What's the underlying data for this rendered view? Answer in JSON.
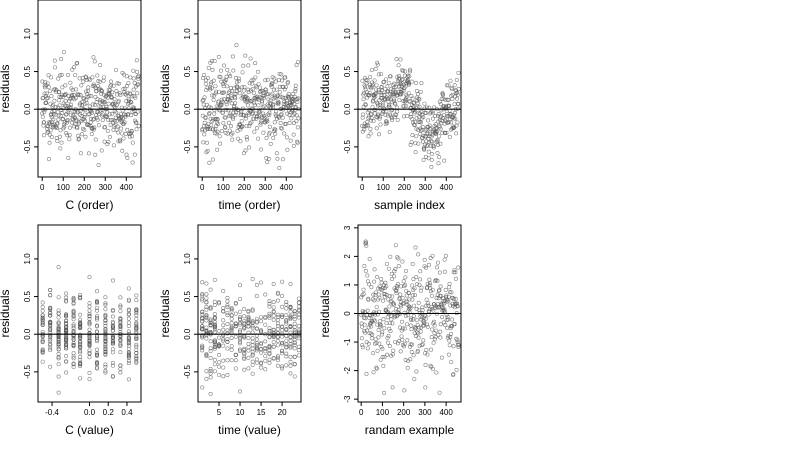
{
  "chart_data": [
    {
      "type": "scatter",
      "xlabel": "C (order)",
      "ylabel": "residuals",
      "xlim": [
        -20,
        470
      ],
      "ylim": [
        -0.9,
        1.45
      ],
      "xticks": [
        0,
        100,
        200,
        300,
        400
      ],
      "xtick_labels": [
        "0",
        "100",
        "200",
        "300",
        "400"
      ],
      "yticks": [
        -0.5,
        0.0,
        0.5,
        1.0
      ],
      "ytick_labels": [
        "-0.5",
        "0.0",
        "0.5",
        "1.0"
      ],
      "hline": 0,
      "n_points": 460,
      "style": "random",
      "seed": 11
    },
    {
      "type": "scatter",
      "xlabel": "time (order)",
      "ylabel": "residuals",
      "xlim": [
        -20,
        470
      ],
      "ylim": [
        -0.9,
        1.45
      ],
      "xticks": [
        0,
        100,
        200,
        300,
        400
      ],
      "xtick_labels": [
        "0",
        "100",
        "200",
        "300",
        "400"
      ],
      "yticks": [
        -0.5,
        0.0,
        0.5,
        1.0
      ],
      "ytick_labels": [
        "-0.5",
        "0.0",
        "0.5",
        "1.0"
      ],
      "hline": 0,
      "n_points": 460,
      "style": "random",
      "seed": 23
    },
    {
      "type": "scatter",
      "xlabel": "sample index",
      "ylabel": "residuals",
      "xlim": [
        -20,
        470
      ],
      "ylim": [
        -0.9,
        1.45
      ],
      "xticks": [
        0,
        100,
        200,
        300,
        400
      ],
      "xtick_labels": [
        "0",
        "100",
        "200",
        "300",
        "400"
      ],
      "yticks": [
        -0.5,
        0.0,
        0.5,
        1.0
      ],
      "ytick_labels": [
        "-0.5",
        "0.0",
        "0.5",
        "1.0"
      ],
      "hline": 0,
      "n_points": 460,
      "style": "trend",
      "seed": 37
    },
    {
      "type": "scatter",
      "xlabel": "C (value)",
      "ylabel": "residuals",
      "xlim": [
        -0.55,
        0.55
      ],
      "ylim": [
        -0.9,
        1.45
      ],
      "xticks": [
        -0.4,
        0.0,
        0.2,
        0.4
      ],
      "xtick_labels": [
        "-0.4",
        "0.0",
        "0.2",
        "0.4"
      ],
      "yticks": [
        -0.5,
        0.0,
        0.5,
        1.0
      ],
      "ytick_labels": [
        "-0.5",
        "0.0",
        "0.5",
        "1.0"
      ],
      "hline": 0,
      "n_points": 460,
      "style": "columns",
      "columns": [
        -0.5,
        -0.42,
        -0.33,
        -0.25,
        -0.17,
        -0.1,
        0.0,
        0.08,
        0.17,
        0.25,
        0.33,
        0.42,
        0.5
      ],
      "seed": 51
    },
    {
      "type": "scatter",
      "xlabel": "time (value)",
      "ylabel": "residuals",
      "xlim": [
        0,
        24.5
      ],
      "ylim": [
        -0.9,
        1.45
      ],
      "xticks": [
        5,
        10,
        15,
        20
      ],
      "xtick_labels": [
        "5",
        "10",
        "15",
        "20"
      ],
      "yticks": [
        -0.5,
        0.0,
        0.5,
        1.0
      ],
      "ytick_labels": [
        "-0.5",
        "0.0",
        "0.5",
        "1.0"
      ],
      "hline": 0,
      "n_points": 460,
      "style": "columns",
      "columns": [
        1,
        2,
        3,
        4,
        5,
        6,
        7,
        8,
        9,
        10,
        11,
        12,
        13,
        14,
        15,
        16,
        17,
        18,
        19,
        20,
        21,
        22,
        23,
        24
      ],
      "seed": 67
    },
    {
      "type": "scatter",
      "xlabel": "randam example",
      "ylabel": "residuals",
      "xlim": [
        -15,
        470
      ],
      "ylim": [
        -3.1,
        3.1
      ],
      "xticks": [
        0,
        100,
        200,
        300,
        400
      ],
      "xtick_labels": [
        "0",
        "100",
        "200",
        "300",
        "400"
      ],
      "yticks": [
        -3,
        -2,
        -1,
        0,
        1,
        2,
        3
      ],
      "ytick_labels": [
        "-3",
        "-2",
        "-1",
        "0",
        "1",
        "2",
        "3"
      ],
      "hline": 0,
      "n_points": 460,
      "style": "normal",
      "seed": 83
    }
  ]
}
